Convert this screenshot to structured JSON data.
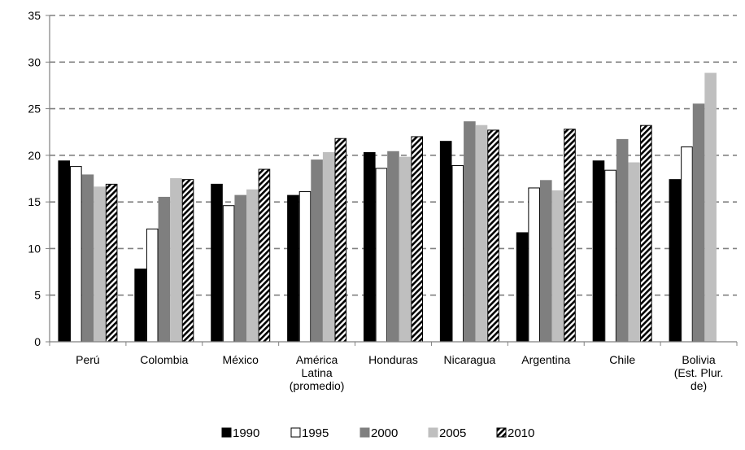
{
  "chart_data": {
    "type": "bar",
    "categories": [
      [
        "Perú"
      ],
      [
        "Colombia"
      ],
      [
        "México"
      ],
      [
        "América",
        "Latina",
        "(promedio)"
      ],
      [
        "Honduras"
      ],
      [
        "Nicaragua"
      ],
      [
        "Argentina"
      ],
      [
        "Chile"
      ],
      [
        "Bolivia",
        "(Est. Plur.",
        "de)"
      ]
    ],
    "series": [
      {
        "name": "1990",
        "fill": "#000000",
        "stroke": "#000000",
        "pattern": "solid",
        "values": [
          19.4,
          7.8,
          16.9,
          15.7,
          20.3,
          21.5,
          11.7,
          19.4,
          17.4
        ]
      },
      {
        "name": "1995",
        "fill": "#ffffff",
        "stroke": "#000000",
        "pattern": "solid",
        "values": [
          18.8,
          12.1,
          14.6,
          16.1,
          18.6,
          18.9,
          16.5,
          18.4,
          20.9
        ]
      },
      {
        "name": "2000",
        "fill": "#7f7f7f",
        "stroke": "#7f7f7f",
        "pattern": "solid",
        "values": [
          17.9,
          15.5,
          15.7,
          19.5,
          20.4,
          23.6,
          17.3,
          21.7,
          25.5
        ]
      },
      {
        "name": "2005",
        "fill": "#bfbfbf",
        "stroke": "#bfbfbf",
        "pattern": "solid",
        "values": [
          16.6,
          17.5,
          16.3,
          20.3,
          19.8,
          23.2,
          16.2,
          19.2,
          28.8
        ]
      },
      {
        "name": "2010",
        "fill": "#000000",
        "stroke": "#000000",
        "pattern": "diagonal-hatch",
        "values": [
          16.9,
          17.4,
          18.5,
          21.8,
          22.0,
          22.7,
          22.8,
          23.2,
          null
        ]
      }
    ],
    "yticks": [
      "0",
      "5",
      "10",
      "15",
      "20",
      "25",
      "30",
      "35"
    ],
    "ylim": [
      0,
      35
    ],
    "ytick_step": 5,
    "grid": "horizontal dashed",
    "legend_position": "bottom",
    "gridline_color": "#808080"
  }
}
